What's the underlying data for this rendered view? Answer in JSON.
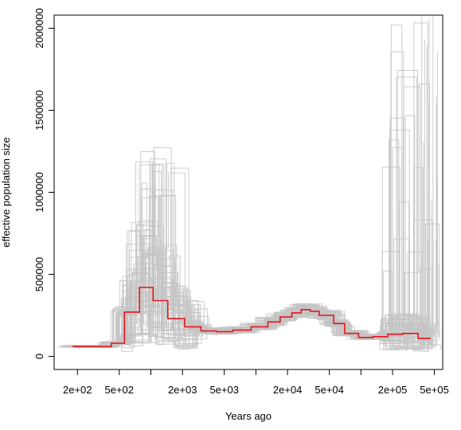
{
  "chart_data": {
    "type": "line",
    "title": "",
    "xlabel": "Years ago",
    "ylabel": "effective population size",
    "x_scale": "log",
    "xlim": [
      120,
      600000
    ],
    "ylim": [
      -80000,
      2080000
    ],
    "grid": false,
    "legend": "none",
    "x_ticks": [
      {
        "value": 200,
        "label": "2e+02"
      },
      {
        "value": 500,
        "label": "5e+02"
      },
      {
        "value": 1000,
        "label": ""
      },
      {
        "value": 2000,
        "label": "2e+03"
      },
      {
        "value": 5000,
        "label": "5e+03"
      },
      {
        "value": 10000,
        "label": ""
      },
      {
        "value": 20000,
        "label": "2e+04"
      },
      {
        "value": 50000,
        "label": "5e+04"
      },
      {
        "value": 100000,
        "label": ""
      },
      {
        "value": 200000,
        "label": "2e+05"
      },
      {
        "value": 500000,
        "label": "5e+05"
      }
    ],
    "y_ticks": [
      {
        "value": 0,
        "label": "0"
      },
      {
        "value": 500000,
        "label": "500000"
      },
      {
        "value": 1000000,
        "label": "1000000"
      },
      {
        "value": 1500000,
        "label": "1500000"
      },
      {
        "value": 2000000,
        "label": "2000000"
      }
    ],
    "colors": {
      "main": "#e8151b",
      "replicates": "#c4c4c4",
      "axis": "#000000"
    },
    "main_series": {
      "x": [
        180,
        420,
        560,
        780,
        1050,
        1450,
        2100,
        3000,
        4200,
        6000,
        9000,
        13000,
        17000,
        22000,
        27000,
        33000,
        40000,
        55000,
        70000,
        95000,
        130000,
        180000,
        250000,
        350000,
        460000
      ],
      "y": [
        60000,
        80000,
        270000,
        420000,
        340000,
        230000,
        180000,
        155000,
        150000,
        160000,
        180000,
        210000,
        240000,
        265000,
        285000,
        275000,
        250000,
        200000,
        140000,
        115000,
        120000,
        135000,
        140000,
        110000,
        110000
      ]
    }
  }
}
